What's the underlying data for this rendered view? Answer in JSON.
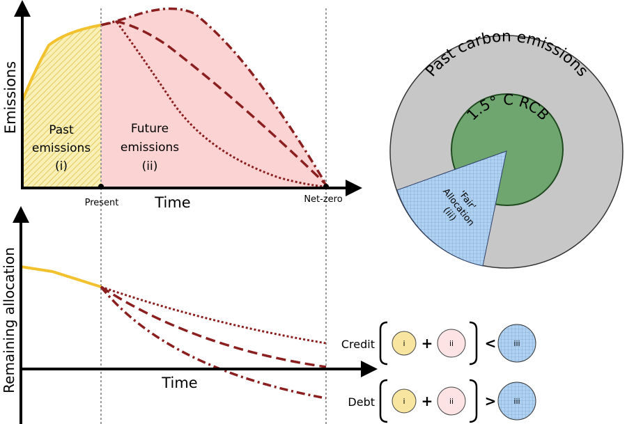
{
  "top_chart": {
    "ylabel": "Emissions",
    "xlabel": "Time",
    "past_label": [
      "Past",
      "emissions",
      "(i)"
    ],
    "future_label": [
      "Future",
      "emissions",
      "(ii)"
    ],
    "present_label": "Present",
    "netzero_label": "Net-zero"
  },
  "bottom_chart": {
    "ylabel": "Remaining allocation",
    "xlabel": "Time"
  },
  "budget_circle": {
    "outer_label": "Past carbon emissions",
    "inner_label": "1.5° C RCB",
    "wedge_label": [
      "'Fair'",
      "Allocation",
      "(iii)"
    ]
  },
  "equations": [
    {
      "label": "Credit",
      "a": "i",
      "op": "+",
      "b": "ii",
      "cmp": "<",
      "c": "iii"
    },
    {
      "label": "Debt",
      "a": "i",
      "op": "+",
      "b": "ii",
      "cmp": ">",
      "c": "iii"
    }
  ],
  "colors": {
    "past": "#f2c12e",
    "past_fill": "#f7eba0",
    "future_fill": "#fcd3d3",
    "pathway": "#8b1f1f",
    "circle_outer": "#c7c7c7",
    "rcb": "#6fa56f",
    "fair": "#a9cdf0"
  }
}
